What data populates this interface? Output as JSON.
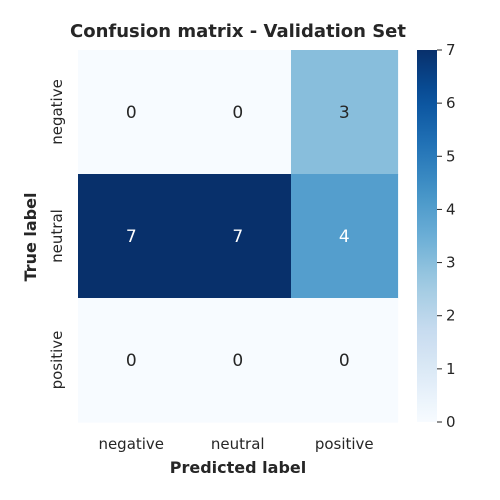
{
  "chart_data": {
    "type": "heatmap",
    "title": "Confusion matrix - Validation Set",
    "xlabel": "Predicted label",
    "ylabel": "True label",
    "x_categories": [
      "negative",
      "neutral",
      "positive"
    ],
    "y_categories": [
      "negative",
      "neutral",
      "positive"
    ],
    "values": [
      [
        0,
        0,
        3
      ],
      [
        7,
        7,
        4
      ],
      [
        0,
        0,
        0
      ]
    ],
    "colormap": "Blues",
    "vmin": 0,
    "vmax": 7,
    "colorbar_ticks": [
      "0",
      "1",
      "2",
      "3",
      "4",
      "5",
      "6",
      "7"
    ],
    "colors": {
      "low": "#f7fbff",
      "high": "#08306b",
      "text_dark": "#262626",
      "text_light": "#ffffff"
    }
  }
}
